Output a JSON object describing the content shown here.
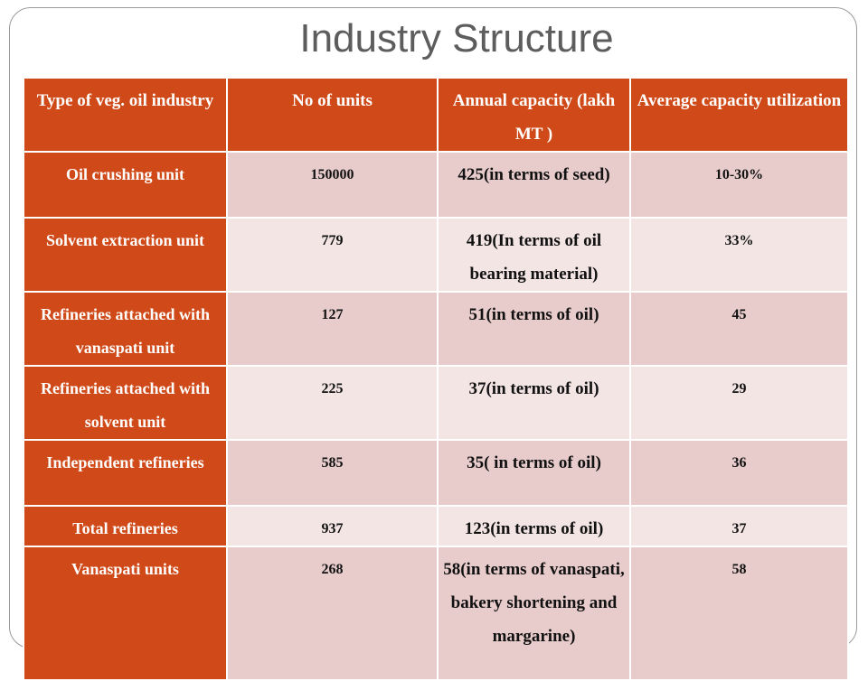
{
  "slide": {
    "title": "Industry Structure"
  },
  "table": {
    "headers": [
      "Type of veg. oil industry",
      "No of units",
      "Annual capacity (lakh MT )",
      "Average capacity utilization"
    ],
    "rows": [
      {
        "type": "Oil crushing unit",
        "units": "150000",
        "capacity": "425(in terms of seed)",
        "utilization": "10-30%"
      },
      {
        "type": "Solvent extraction unit",
        "units": "779",
        "capacity": "419(In terms of oil bearing material)",
        "utilization": "33%"
      },
      {
        "type": "Refineries attached with vanaspati unit",
        "units": "127",
        "capacity": "51(in terms of oil)",
        "utilization": "45"
      },
      {
        "type": "Refineries attached with solvent unit",
        "units": "225",
        "capacity": "37(in terms of oil)",
        "utilization": "29"
      },
      {
        "type": "Independent refineries",
        "units": "585",
        "capacity": "35( in terms of oil)",
        "utilization": "36"
      },
      {
        "type": "Total refineries",
        "units": "937",
        "capacity": "123(in terms of oil)",
        "utilization": "37"
      },
      {
        "type": "Vanaspati units",
        "units": "268",
        "capacity": "58(in terms of vanaspati, bakery shortening and margarine)",
        "utilization": "58"
      }
    ]
  },
  "colors": {
    "header_bg": "#d04a19",
    "row_odd_bg": "#e8cccc",
    "row_even_bg": "#f4e5e5",
    "title_color": "#5d5d5d"
  }
}
